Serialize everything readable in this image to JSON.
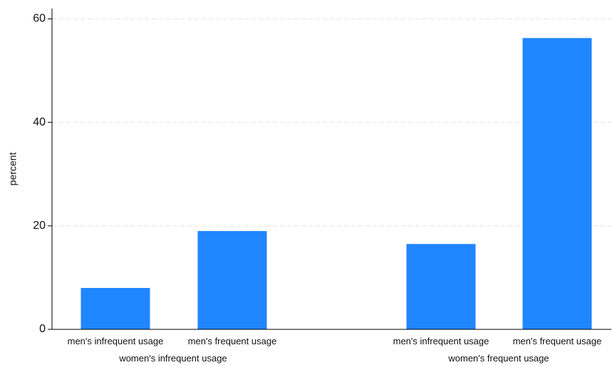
{
  "chart_data": {
    "type": "bar",
    "ylabel": "percent",
    "ylim": [
      0,
      62
    ],
    "yticks": [
      0,
      20,
      40,
      60
    ],
    "grid": true,
    "bar_color": "#1F86FF",
    "groups": [
      {
        "label": "women's infrequent usage",
        "categories": [
          "men's infrequent usage",
          "men's frequent usage"
        ],
        "values": [
          8,
          19
        ]
      },
      {
        "label": "women's frequent usage",
        "categories": [
          "men's infrequent usage",
          "men's frequent usage"
        ],
        "values": [
          16.5,
          56.3
        ]
      }
    ]
  }
}
